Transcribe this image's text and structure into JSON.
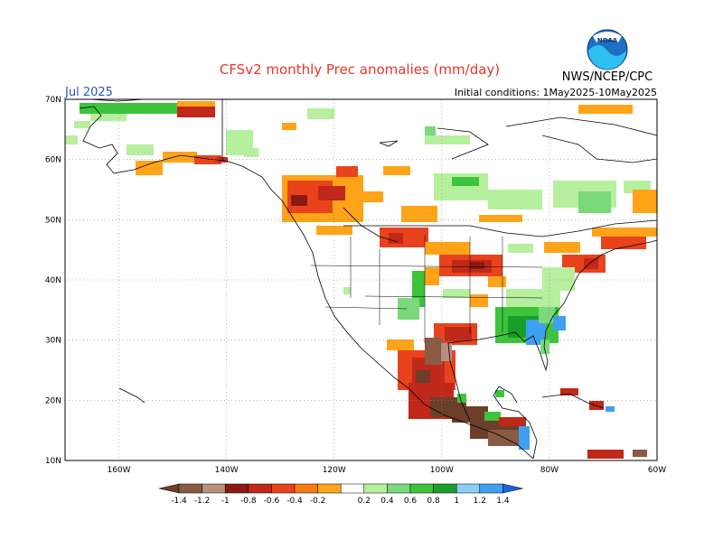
{
  "header": {
    "title": "CFSv2 monthly Prec anomalies (mm/day)",
    "month": "Jul 2025",
    "initial_conditions": "Initial conditions: 1May2025-10May2025",
    "credit": "NWS/NCEP/CPC",
    "logo_text": "NOAA"
  },
  "map": {
    "lon_ticks": [
      "160W",
      "140W",
      "120W",
      "100W",
      "80W",
      "60W"
    ],
    "lat_ticks": [
      "70N",
      "60N",
      "50N",
      "40N",
      "30N",
      "20N",
      "10N"
    ]
  },
  "colorbar": {
    "labels": [
      "-1.4",
      "-1.2",
      "-1",
      "-0.8",
      "-0.6",
      "-0.4",
      "-0.2",
      "0.2",
      "0.4",
      "0.6",
      "0.8",
      "1",
      "1.2",
      "1.4"
    ],
    "colors": [
      "#6b3f2a",
      "#8a5a44",
      "#b78f7e",
      "#8c1a12",
      "#c0281a",
      "#e8431c",
      "#f57b12",
      "#ffa318",
      "#ffffff",
      "#b6ef9e",
      "#7ad97a",
      "#3cc43c",
      "#1a9e2a",
      "#8ccef5",
      "#3f9ff0",
      "#1c64dc"
    ]
  },
  "colors": {
    "title": "#e8352a",
    "month": "#2a55c8",
    "coast": "#000000",
    "grid": "#777777"
  }
}
